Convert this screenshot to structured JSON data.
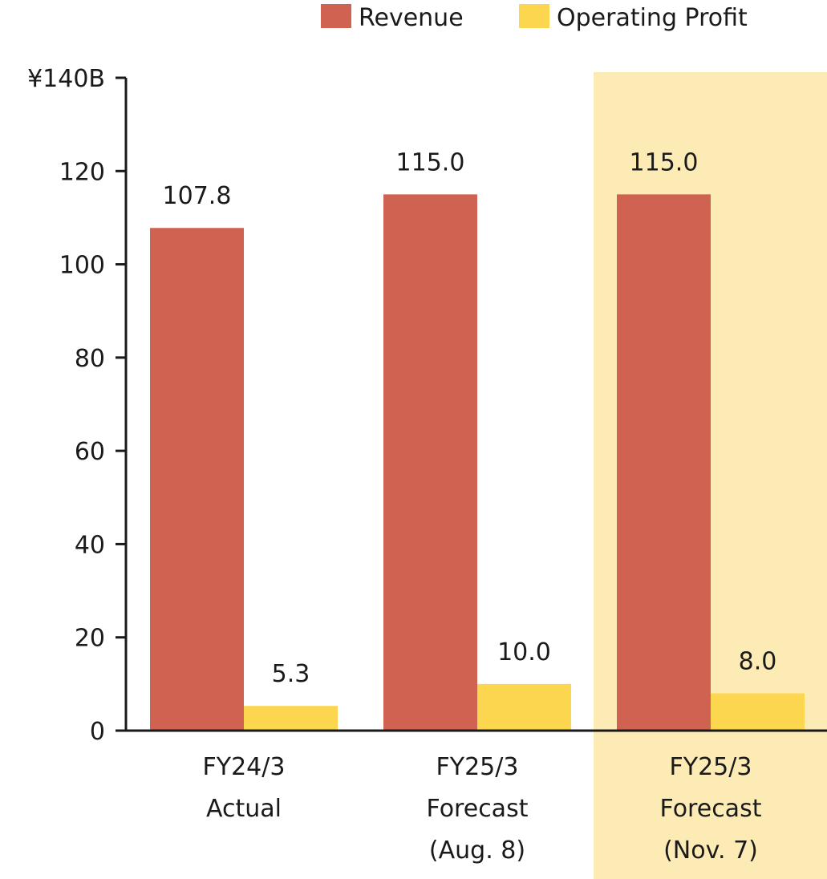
{
  "chart_data": {
    "type": "bar",
    "categories": [
      [
        "FY24/3",
        "Actual"
      ],
      [
        "FY25/3",
        "Forecast",
        "(Aug. 8)"
      ],
      [
        "FY25/3",
        "Forecast",
        "(Nov. 7)"
      ]
    ],
    "series": [
      {
        "name": "Revenue",
        "color": "#d06252",
        "values": [
          107.8,
          115.0,
          115.0
        ],
        "labels": [
          "107.8",
          "115.0",
          "115.0"
        ]
      },
      {
        "name": "Operating Profit",
        "color": "#fdd64f",
        "values": [
          5.3,
          10.0,
          8.0
        ],
        "labels": [
          "5.3",
          "10.0",
          "8.0"
        ]
      }
    ],
    "ylim": [
      0,
      140
    ],
    "yticks": [
      {
        "value": 0,
        "label": "0"
      },
      {
        "value": 20,
        "label": "20"
      },
      {
        "value": 40,
        "label": "40"
      },
      {
        "value": 60,
        "label": "60"
      },
      {
        "value": 80,
        "label": "80"
      },
      {
        "value": 100,
        "label": "100"
      },
      {
        "value": 120,
        "label": "120"
      },
      {
        "value": 140,
        "label": "¥140B"
      }
    ],
    "highlighted_category_index": 2,
    "highlight_color": "#fdebb5",
    "legend_position": "top-right",
    "grid": false
  }
}
